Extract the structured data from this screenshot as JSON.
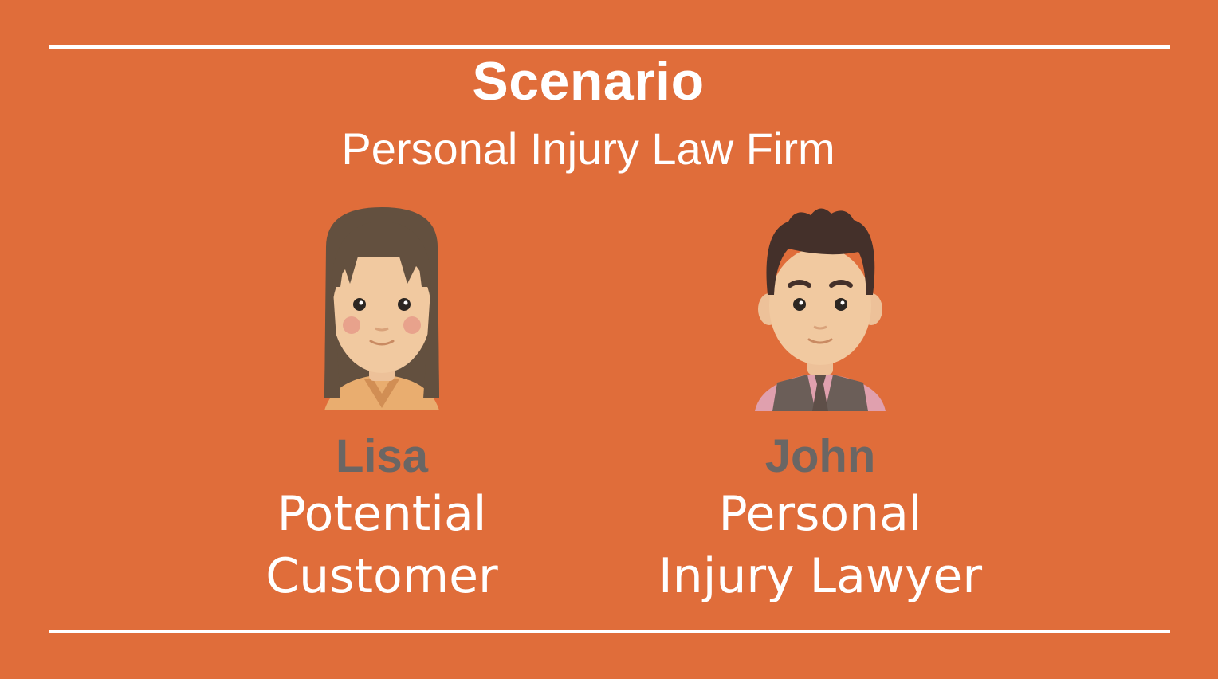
{
  "slide": {
    "title": "Scenario",
    "subtitle": "Personal Injury Law Firm",
    "background_color": "#E06D3A"
  },
  "personas": [
    {
      "name": "Lisa",
      "role_line1": "Potential",
      "role_line2": "Customer",
      "icon": "woman-avatar-icon"
    },
    {
      "name": "John",
      "role_line1": "Personal",
      "role_line2": "Injury Lawyer",
      "icon": "man-avatar-icon"
    }
  ]
}
